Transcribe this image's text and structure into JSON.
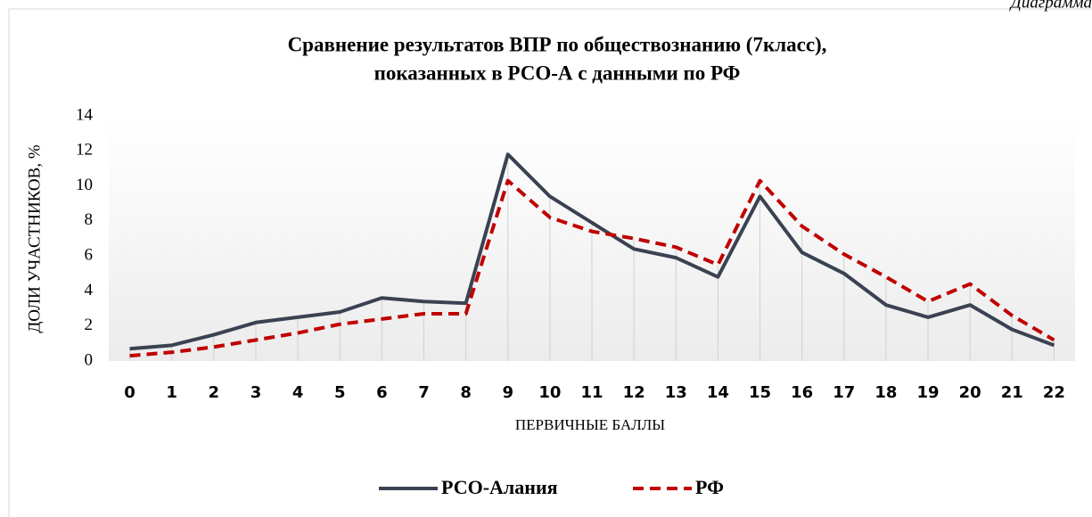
{
  "chart_data": {
    "type": "line",
    "caption": "Диаграмма",
    "title": [
      "Сравнение результатов ВПР по обществознанию (7класс),",
      "показанных  в РСО-А с данными по РФ"
    ],
    "y_label": "ДОЛИ УЧАСТНИКОВ, %",
    "x_label": "ПЕРВИЧНЫЕ БАЛЛЫ",
    "categories": [
      "0",
      "1",
      "2",
      "3",
      "4",
      "5",
      "6",
      "7",
      "8",
      "9",
      "10",
      "11",
      "12",
      "13",
      "14",
      "15",
      "16",
      "17",
      "18",
      "19",
      "20",
      "21",
      "22"
    ],
    "series": [
      {
        "name": "РСО-Алания",
        "color": "#3a4252",
        "style": "solid",
        "values": [
          0.7,
          0.9,
          1.5,
          2.2,
          2.5,
          2.8,
          3.6,
          3.4,
          3.3,
          11.8,
          9.4,
          7.9,
          6.4,
          5.9,
          4.8,
          9.4,
          6.2,
          5.0,
          3.2,
          2.5,
          3.2,
          1.8,
          0.9
        ]
      },
      {
        "name": "РФ",
        "color": "#c00000",
        "style": "dashed",
        "values": [
          0.3,
          0.5,
          0.8,
          1.2,
          1.6,
          2.1,
          2.4,
          2.7,
          2.7,
          10.3,
          8.2,
          7.4,
          7.0,
          6.5,
          5.5,
          10.3,
          7.7,
          6.1,
          4.8,
          3.4,
          4.4,
          2.6,
          1.2
        ]
      }
    ],
    "ylim": [
      0,
      14
    ],
    "yticks": [
      0,
      2,
      4,
      6,
      8,
      10,
      12,
      14
    ],
    "drop_lines": true,
    "legend": "bottom"
  }
}
